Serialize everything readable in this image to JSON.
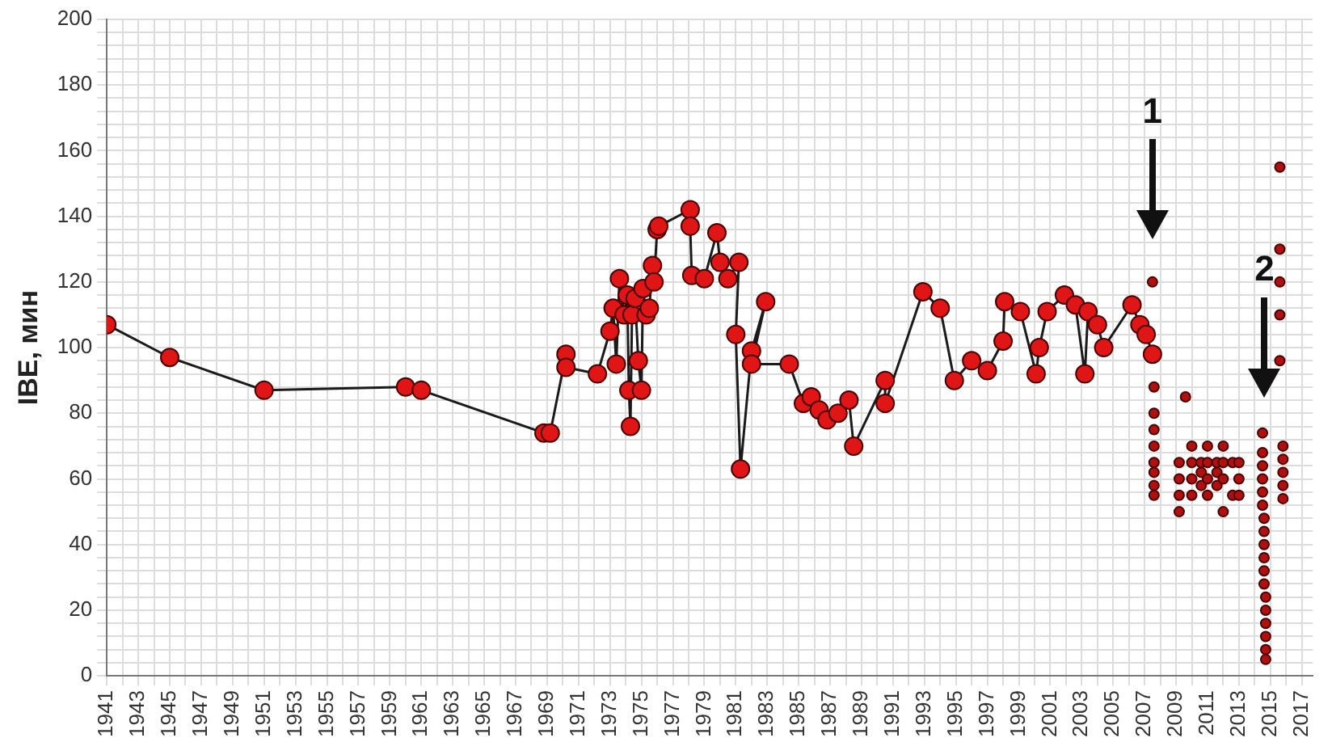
{
  "chart_data": {
    "type": "line",
    "ylabel": "IBE, мин",
    "xlim": [
      1941,
      2017.7
    ],
    "ylim": [
      0,
      200
    ],
    "xticks": [
      1941,
      {
        "value": 1942,
        "label": null
      },
      1943,
      {
        "value": 1944,
        "label": null
      },
      1945,
      {
        "value": 1946,
        "label": null
      },
      1947,
      {
        "value": 1948,
        "label": null
      },
      1949,
      {
        "value": 1950,
        "label": null
      },
      1951,
      {
        "value": 1952,
        "label": null
      },
      1953,
      {
        "value": 1954,
        "label": null
      },
      1955,
      {
        "value": 1956,
        "label": null
      },
      1957,
      {
        "value": 1958,
        "label": null
      },
      1959,
      {
        "value": 1960,
        "label": null
      },
      1961,
      {
        "value": 1962,
        "label": null
      },
      1963,
      {
        "value": 1964,
        "label": null
      },
      1965,
      {
        "value": 1966,
        "label": null
      },
      1967,
      {
        "value": 1968,
        "label": null
      },
      1969,
      {
        "value": 1970,
        "label": null
      },
      1971,
      {
        "value": 1972,
        "label": null
      },
      1973,
      {
        "value": 1974,
        "label": null
      },
      1975,
      {
        "value": 1976,
        "label": null
      },
      1977,
      {
        "value": 1978,
        "label": null
      },
      1979,
      {
        "value": 1980,
        "label": null
      },
      1981,
      {
        "value": 1982,
        "label": null
      },
      1983,
      {
        "value": 1984,
        "label": null
      },
      1985,
      {
        "value": 1986,
        "label": null
      },
      1987,
      {
        "value": 1988,
        "label": null
      },
      1989,
      {
        "value": 1990,
        "label": null
      },
      1991,
      {
        "value": 1992,
        "label": null
      },
      1993,
      {
        "value": 1994,
        "label": null
      },
      1995,
      {
        "value": 1996,
        "label": null
      },
      1997,
      {
        "value": 1998,
        "label": null
      },
      1999,
      {
        "value": 2000,
        "label": null
      },
      2001,
      {
        "value": 2002,
        "label": null
      },
      2003,
      {
        "value": 2004,
        "label": null
      },
      2005,
      {
        "value": 2006,
        "label": null
      },
      2007,
      {
        "value": 2008,
        "label": null
      },
      2009,
      {
        "value": 2010,
        "label": null
      },
      2011,
      {
        "value": 2012,
        "label": null
      },
      2013,
      {
        "value": 2014,
        "label": null
      },
      2015,
      {
        "value": 2016,
        "label": null
      },
      2017
    ],
    "yticks": [
      0,
      {
        "value": 4,
        "label": null
      },
      {
        "value": 8,
        "label": null
      },
      {
        "value": 12,
        "label": null
      },
      {
        "value": 16,
        "label": null
      },
      20,
      {
        "value": 24,
        "label": null
      },
      {
        "value": 28,
        "label": null
      },
      {
        "value": 32,
        "label": null
      },
      {
        "value": 36,
        "label": null
      },
      40,
      {
        "value": 44,
        "label": null
      },
      {
        "value": 48,
        "label": null
      },
      {
        "value": 52,
        "label": null
      },
      {
        "value": 56,
        "label": null
      },
      60,
      {
        "value": 64,
        "label": null
      },
      {
        "value": 68,
        "label": null
      },
      {
        "value": 72,
        "label": null
      },
      {
        "value": 76,
        "label": null
      },
      80,
      {
        "value": 84,
        "label": null
      },
      {
        "value": 88,
        "label": null
      },
      {
        "value": 92,
        "label": null
      },
      {
        "value": 96,
        "label": null
      },
      100,
      {
        "value": 104,
        "label": null
      },
      {
        "value": 108,
        "label": null
      },
      {
        "value": 112,
        "label": null
      },
      {
        "value": 116,
        "label": null
      },
      120,
      {
        "value": 124,
        "label": null
      },
      {
        "value": 128,
        "label": null
      },
      {
        "value": 132,
        "label": null
      },
      {
        "value": 136,
        "label": null
      },
      140,
      {
        "value": 144,
        "label": null
      },
      {
        "value": 148,
        "label": null
      },
      {
        "value": 152,
        "label": null
      },
      {
        "value": 156,
        "label": null
      },
      160,
      {
        "value": 164,
        "label": null
      },
      {
        "value": 168,
        "label": null
      },
      {
        "value": 172,
        "label": null
      },
      {
        "value": 176,
        "label": null
      },
      180,
      {
        "value": 184,
        "label": null
      },
      {
        "value": 188,
        "label": null
      },
      {
        "value": 192,
        "label": null
      },
      {
        "value": 196,
        "label": null
      },
      200
    ],
    "grid": true,
    "marker": "circle",
    "annotations": [
      "1",
      "2"
    ],
    "series": [
      {
        "color": "#e01515",
        "x": [
          1941,
          1945,
          1951,
          1960,
          1961,
          1968.8,
          1969.2,
          1970.2,
          1970.2,
          1972.2,
          1973,
          1973.2,
          1973.4,
          1973.6,
          1973.9,
          1974.1,
          1974.2,
          1974.3,
          1974.4,
          1974.6,
          1974.8,
          1975,
          1975.1,
          1975.3,
          1975.5,
          1975.7,
          1975.8,
          1976,
          1976.1,
          1978.1,
          1978.1,
          1978.2,
          1979,
          1979.8,
          1980,
          1980.5,
          1981.2,
          1981,
          1981.3,
          1982,
          1982.9,
          1982,
          1984.4,
          1985.3,
          1985.8,
          1986.3,
          1986.8,
          1987.5,
          1988.2,
          1988.5,
          1990.5,
          1990.5,
          1992.9,
          1994,
          1994.9,
          1996,
          1997,
          1998,
          1998.1,
          1999.1,
          2000.1,
          2000.3,
          2000.8,
          2001.9,
          2002.6,
          2003.2,
          2003.4,
          2004,
          2004.4,
          2006.2,
          2006.7,
          2007.1,
          2007.5
        ],
        "values": [
          107,
          97,
          87,
          88,
          87,
          74,
          74,
          98,
          94,
          92,
          105,
          112,
          95,
          121,
          110,
          116,
          87,
          76,
          110,
          115,
          96,
          87,
          118,
          110,
          112,
          125,
          120,
          136,
          137,
          142,
          137,
          122,
          121,
          135,
          126,
          121,
          126,
          104,
          63,
          99,
          114,
          95,
          95,
          83,
          85,
          81,
          78,
          80,
          84,
          70,
          90,
          83,
          117,
          112,
          90,
          96,
          93,
          102,
          114,
          111,
          92,
          100,
          111,
          116,
          113,
          92,
          111,
          107,
          100,
          113,
          107,
          104,
          98
        ]
      },
      {
        "type": "scatter",
        "color": "#b01010",
        "x": [
          2007.5,
          2007.6,
          2007.6,
          2007.6,
          2007.6,
          2007.6,
          2007.6,
          2007.6,
          2007.6,
          2009.6,
          2009.2,
          2009.2,
          2009.2,
          2009.2,
          2010,
          2010,
          2010,
          2010,
          2010.6,
          2010.6,
          2010.6,
          2011,
          2011,
          2011,
          2011,
          2011.6,
          2011.6,
          2011.6,
          2012,
          2012,
          2012,
          2012,
          2012.6,
          2012.6,
          2013,
          2013,
          2013,
          2014.5,
          2014.5,
          2014.5,
          2014.5,
          2014.5,
          2014.5,
          2014.6,
          2014.6,
          2014.6,
          2014.6,
          2014.6,
          2014.6,
          2014.7,
          2014.7,
          2014.7,
          2014.7,
          2014.7,
          2014.7,
          2015.6,
          2015.6,
          2015.6,
          2015.6,
          2015.6,
          2015.8,
          2015.8,
          2015.8,
          2015.8,
          2015.8
        ],
        "values": [
          120,
          88,
          80,
          75,
          70,
          65,
          62,
          58,
          55,
          85,
          65,
          60,
          55,
          50,
          70,
          65,
          60,
          55,
          65,
          62,
          58,
          70,
          65,
          60,
          55,
          65,
          62,
          58,
          70,
          65,
          60,
          50,
          65,
          55,
          65,
          60,
          55,
          74,
          68,
          64,
          60,
          56,
          52,
          48,
          44,
          40,
          36,
          32,
          28,
          24,
          20,
          16,
          12,
          8,
          5,
          155,
          130,
          120,
          110,
          96,
          70,
          66,
          62,
          58,
          54
        ]
      }
    ]
  }
}
